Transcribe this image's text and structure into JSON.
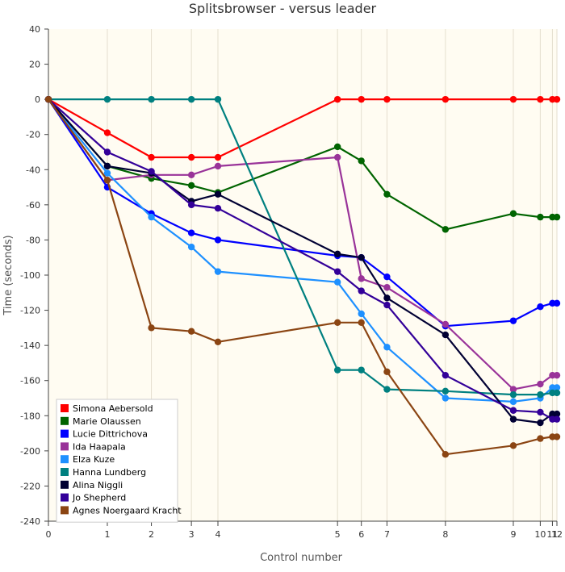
{
  "chart_data": {
    "type": "line",
    "title": "Splitsbrowser - versus leader",
    "xlabel": "Control number",
    "ylabel": "Time (seconds)",
    "ylim": [
      -240,
      40
    ],
    "y_ticks": [
      40,
      20,
      0,
      -20,
      -40,
      -60,
      -80,
      -100,
      -120,
      -140,
      -160,
      -180,
      -200,
      -220,
      -240
    ],
    "x_ticks": [
      {
        "value": 0,
        "label": "0"
      },
      {
        "value": 1,
        "label": "1"
      },
      {
        "value": 2,
        "label": "2"
      },
      {
        "value": 3,
        "label": "3"
      },
      {
        "value": 4,
        "label": "4"
      },
      {
        "value": 5,
        "label": "5"
      },
      {
        "value": 6,
        "label": "6"
      },
      {
        "value": 7,
        "label": "7"
      },
      {
        "value": 8,
        "label": "8"
      },
      {
        "value": 9,
        "label": "9"
      },
      {
        "value": 10,
        "label": "10"
      },
      {
        "value": 11,
        "label": "11"
      },
      {
        "value": 12,
        "label": "12"
      }
    ],
    "x_cumulative_seconds": [
      0,
      131,
      229,
      318,
      377,
      643,
      696,
      753,
      883,
      1034,
      1094,
      1121,
      1131
    ],
    "legend_position": "bottom-left",
    "plot_background": "#fffcf2",
    "series": [
      {
        "name": "Simona Aebersold",
        "color": "#ff0000",
        "values": [
          0,
          -19,
          -33,
          -33,
          -33,
          0,
          0,
          0,
          0,
          0,
          0,
          0,
          0
        ]
      },
      {
        "name": "Marie Olaussen",
        "color": "#006400",
        "values": [
          0,
          -38,
          -45,
          -49,
          -53,
          -27,
          -35,
          -54,
          -74,
          -65,
          -67,
          -67,
          -67
        ]
      },
      {
        "name": "Lucie Dittrichova",
        "color": "#0000ff",
        "values": [
          0,
          -50,
          -65,
          -76,
          -80,
          -89,
          -90,
          -101,
          -129,
          -126,
          -118,
          -116,
          -116
        ]
      },
      {
        "name": "Ida Haapala",
        "color": "#993399",
        "values": [
          0,
          -46,
          -43,
          -43,
          -38,
          -33,
          -102,
          -107,
          -128,
          -165,
          -162,
          -157,
          -157
        ]
      },
      {
        "name": "Elza Kuze",
        "color": "#1e90ff",
        "values": [
          0,
          -42,
          -67,
          -84,
          -98,
          -104,
          -122,
          -141,
          -170,
          -172,
          -170,
          -164,
          -164
        ]
      },
      {
        "name": "Hanna Lundberg",
        "color": "#008080",
        "values": [
          0,
          0,
          0,
          0,
          0,
          -154,
          -154,
          -165,
          -166,
          -168,
          -168,
          -167,
          -167
        ]
      },
      {
        "name": "Alina Niggli",
        "color": "#000033",
        "values": [
          0,
          -38,
          -42,
          -58,
          -54,
          -88,
          -90,
          -113,
          -134,
          -182,
          -184,
          -179,
          -179
        ]
      },
      {
        "name": "Jo Shepherd",
        "color": "#330099",
        "values": [
          0,
          -30,
          -41,
          -60,
          -62,
          -98,
          -109,
          -117,
          -157,
          -177,
          -178,
          -182,
          -182
        ]
      },
      {
        "name": "Agnes Noergaard Kracht",
        "color": "#8b4513",
        "values": [
          0,
          -46,
          -130,
          -132,
          -138,
          -127,
          -127,
          -155,
          -202,
          -197,
          -193,
          -192,
          -192
        ]
      }
    ]
  }
}
